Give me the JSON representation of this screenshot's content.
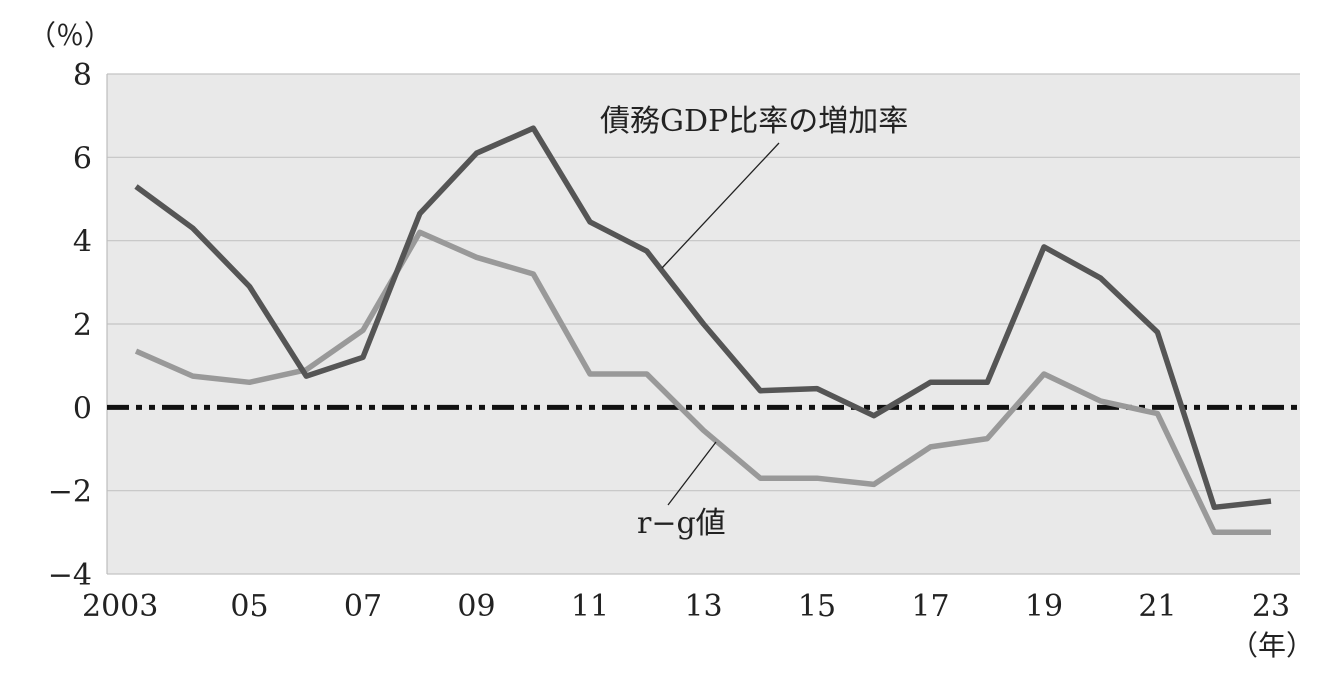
{
  "chart_data": {
    "type": "line",
    "y_unit": "（％）",
    "x_unit": "（年）",
    "ylim": [
      -4,
      8
    ],
    "yticks": [
      8,
      6,
      4,
      2,
      0,
      -2,
      -4
    ],
    "ytick_labels": [
      "8",
      "6",
      "4",
      "2",
      "0",
      "−2",
      "−4"
    ],
    "grid": true,
    "background": "#e9e9e9",
    "x": [
      2003,
      2004,
      2005,
      2006,
      2007,
      2008,
      2009,
      2010,
      2011,
      2012,
      2013,
      2014,
      2015,
      2016,
      2017,
      2018,
      2019,
      2020,
      2021,
      2022,
      2023
    ],
    "xtick_values": [
      2003,
      2005,
      2007,
      2009,
      2011,
      2013,
      2015,
      2017,
      2019,
      2021,
      2023
    ],
    "xtick_labels": [
      "2003",
      "05",
      "07",
      "09",
      "11",
      "13",
      "15",
      "17",
      "19",
      "21",
      "23"
    ],
    "series": [
      {
        "name": "債務GDP比率の増加率",
        "color": "#555555",
        "values": [
          5.3,
          4.3,
          2.9,
          0.75,
          1.2,
          4.65,
          6.1,
          6.7,
          4.45,
          3.75,
          2.0,
          0.4,
          0.45,
          -0.2,
          0.6,
          0.6,
          3.85,
          3.1,
          1.8,
          -2.4,
          -2.25
        ]
      },
      {
        "name": "r−g値",
        "color": "#999999",
        "values": [
          1.35,
          0.75,
          0.6,
          0.9,
          1.85,
          4.2,
          3.6,
          3.2,
          0.8,
          0.8,
          -0.55,
          -1.7,
          -1.7,
          -1.85,
          -0.95,
          -0.75,
          0.8,
          0.15,
          -0.15,
          -3.0,
          -3.0
        ]
      }
    ],
    "reference_line": {
      "y": 0,
      "style": "dash-dot",
      "color": "#111111"
    }
  }
}
